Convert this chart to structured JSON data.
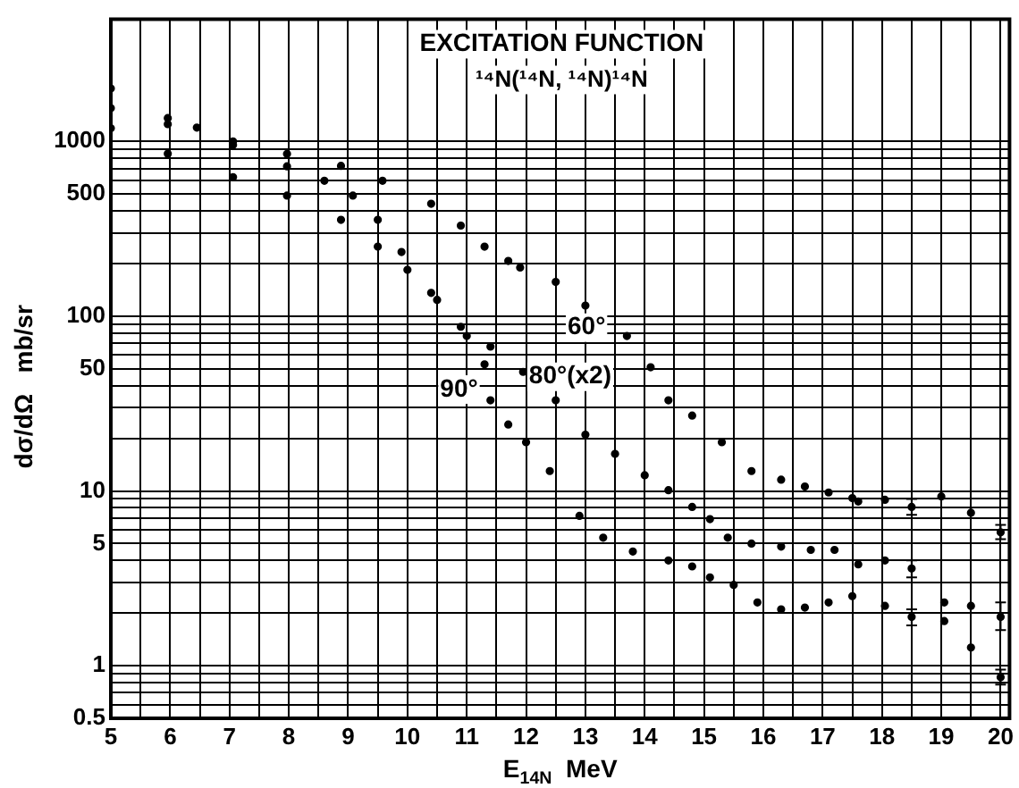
{
  "chart_data": {
    "type": "scatter",
    "title": "EXCITATION FUNCTION",
    "subtitle": "¹⁴N(¹⁴N, ¹⁴N)¹⁴N",
    "xlabel": "E$_{14N}$  MeV",
    "ylabel": "dσ/dΩ   mb/sr",
    "xlim": [
      5,
      20.15
    ],
    "ylim": [
      0.5,
      5000
    ],
    "xticks": [
      5,
      {
        "value": 5.5,
        "label": null
      },
      6,
      {
        "value": 6.5,
        "label": null
      },
      7,
      {
        "value": 7.5,
        "label": null
      },
      8,
      {
        "value": 8.5,
        "label": null
      },
      9,
      {
        "value": 9.5,
        "label": null
      },
      10,
      {
        "value": 10.5,
        "label": null
      },
      11,
      {
        "value": 11.5,
        "label": null
      },
      12,
      {
        "value": 12.5,
        "label": null
      },
      13,
      {
        "value": 13.5,
        "label": null
      },
      14,
      {
        "value": 14.5,
        "label": null
      },
      15,
      {
        "value": 15.5,
        "label": null
      },
      16,
      {
        "value": 16.5,
        "label": null
      },
      17,
      {
        "value": 17.5,
        "label": null
      },
      18,
      {
        "value": 18.5,
        "label": null
      },
      19,
      {
        "value": 19.5,
        "label": null
      },
      20
    ],
    "yticks": [
      {
        "value": 0.5,
        "label": "0.5"
      },
      {
        "value": 0.6,
        "label": null
      },
      {
        "value": 0.7,
        "label": null
      },
      {
        "value": 0.8,
        "label": null
      },
      {
        "value": 0.9,
        "label": null
      },
      1,
      {
        "value": 2,
        "label": null
      },
      {
        "value": 3,
        "label": null
      },
      {
        "value": 4,
        "label": null
      },
      5,
      {
        "value": 6,
        "label": null
      },
      {
        "value": 7,
        "label": null
      },
      {
        "value": 8,
        "label": null
      },
      {
        "value": 9,
        "label": null
      },
      10,
      {
        "value": 20,
        "label": null
      },
      {
        "value": 30,
        "label": null
      },
      {
        "value": 40,
        "label": null
      },
      50,
      {
        "value": 60,
        "label": null
      },
      {
        "value": 70,
        "label": null
      },
      {
        "value": 80,
        "label": null
      },
      {
        "value": 90,
        "label": null
      },
      100,
      {
        "value": 200,
        "label": null
      },
      {
        "value": 300,
        "label": null
      },
      {
        "value": 400,
        "label": null
      },
      500,
      {
        "value": 600,
        "label": null
      },
      {
        "value": 700,
        "label": null
      },
      {
        "value": 800,
        "label": null
      },
      {
        "value": 900,
        "label": null
      },
      1000
    ],
    "log": "y",
    "grid": true,
    "legend": false,
    "marker": "circle",
    "series": [
      {
        "name": "60°",
        "color": "#000000",
        "x": [
          5,
          5.96,
          7.06,
          7.97,
          8.88,
          9.58,
          10.4,
          10.9,
          11.3,
          11.7,
          11.9,
          12.5,
          13.0,
          13.7,
          14.1,
          14.4,
          14.8,
          15.3,
          15.8,
          16.3,
          16.7,
          17.1,
          17.5,
          17.6,
          18.05,
          18.5,
          19.0,
          19.5,
          20.0
        ],
        "values": [
          1550,
          1257,
          954,
          848,
          725,
          596,
          440,
          330,
          250,
          207,
          190,
          157,
          115,
          77,
          51,
          33,
          27,
          19,
          13,
          11.6,
          10.6,
          9.8,
          9.1,
          8.7,
          8.9,
          8.1,
          9.3,
          7.5,
          5.8
        ],
        "errors": [
          null,
          null,
          null,
          null,
          null,
          null,
          null,
          null,
          null,
          null,
          null,
          null,
          null,
          null,
          null,
          null,
          null,
          null,
          null,
          null,
          null,
          null,
          null,
          null,
          null,
          [
            7.3,
            9.0
          ],
          null,
          null,
          [
            5.3,
            6.4
          ]
        ]
      },
      {
        "name": "80°(x2)",
        "color": "#000000",
        "x": [
          5,
          5.96,
          6.45,
          7.06,
          7.97,
          8.6,
          9.08,
          9.5,
          9.9,
          10.4,
          10.9,
          11.4,
          11.95,
          12.5,
          13.0,
          13.5,
          14.0,
          14.4,
          14.8,
          15.1,
          15.4,
          15.8,
          16.3,
          16.8,
          17.2,
          17.6,
          18.05,
          18.5,
          19.05,
          19.5,
          20.0
        ],
        "values": [
          2010,
          1360,
          1200,
          1000,
          720,
          596,
          490,
          356,
          233,
          136,
          87,
          67,
          48,
          33,
          21,
          16.3,
          12.3,
          10.1,
          8.1,
          6.9,
          5.4,
          5.0,
          4.8,
          4.6,
          4.6,
          3.8,
          4.0,
          3.6,
          2.3,
          2.2,
          1.9
        ],
        "errors": [
          null,
          null,
          null,
          null,
          null,
          null,
          null,
          null,
          null,
          null,
          null,
          null,
          null,
          null,
          null,
          null,
          null,
          null,
          null,
          null,
          null,
          null,
          null,
          null,
          null,
          null,
          null,
          [
            3.2,
            4.0
          ],
          null,
          null,
          [
            1.6,
            2.3
          ]
        ]
      },
      {
        "name": "90°",
        "color": "#000000",
        "x": [
          5,
          5.96,
          7.06,
          7.97,
          8.88,
          9.5,
          10.0,
          10.5,
          11.0,
          11.3,
          11.4,
          11.7,
          12.0,
          12.4,
          12.9,
          13.3,
          13.8,
          14.4,
          14.8,
          15.1,
          15.5,
          15.9,
          16.3,
          16.7,
          17.1,
          17.5,
          18.05,
          18.5,
          19.05,
          19.5,
          20.0
        ],
        "values": [
          1190,
          850,
          625,
          490,
          356,
          250,
          184,
          124,
          77,
          53,
          33,
          24,
          19,
          13,
          7.2,
          5.4,
          4.5,
          4.0,
          3.7,
          3.2,
          2.9,
          2.3,
          2.1,
          2.15,
          2.3,
          2.5,
          2.2,
          1.9,
          1.8,
          1.27,
          0.86
        ],
        "errors": [
          null,
          null,
          null,
          null,
          null,
          null,
          null,
          null,
          null,
          null,
          null,
          null,
          null,
          null,
          null,
          null,
          null,
          null,
          null,
          null,
          null,
          null,
          null,
          null,
          null,
          null,
          null,
          [
            1.7,
            2.1
          ],
          null,
          null,
          [
            0.78,
            0.95
          ]
        ]
      }
    ]
  }
}
